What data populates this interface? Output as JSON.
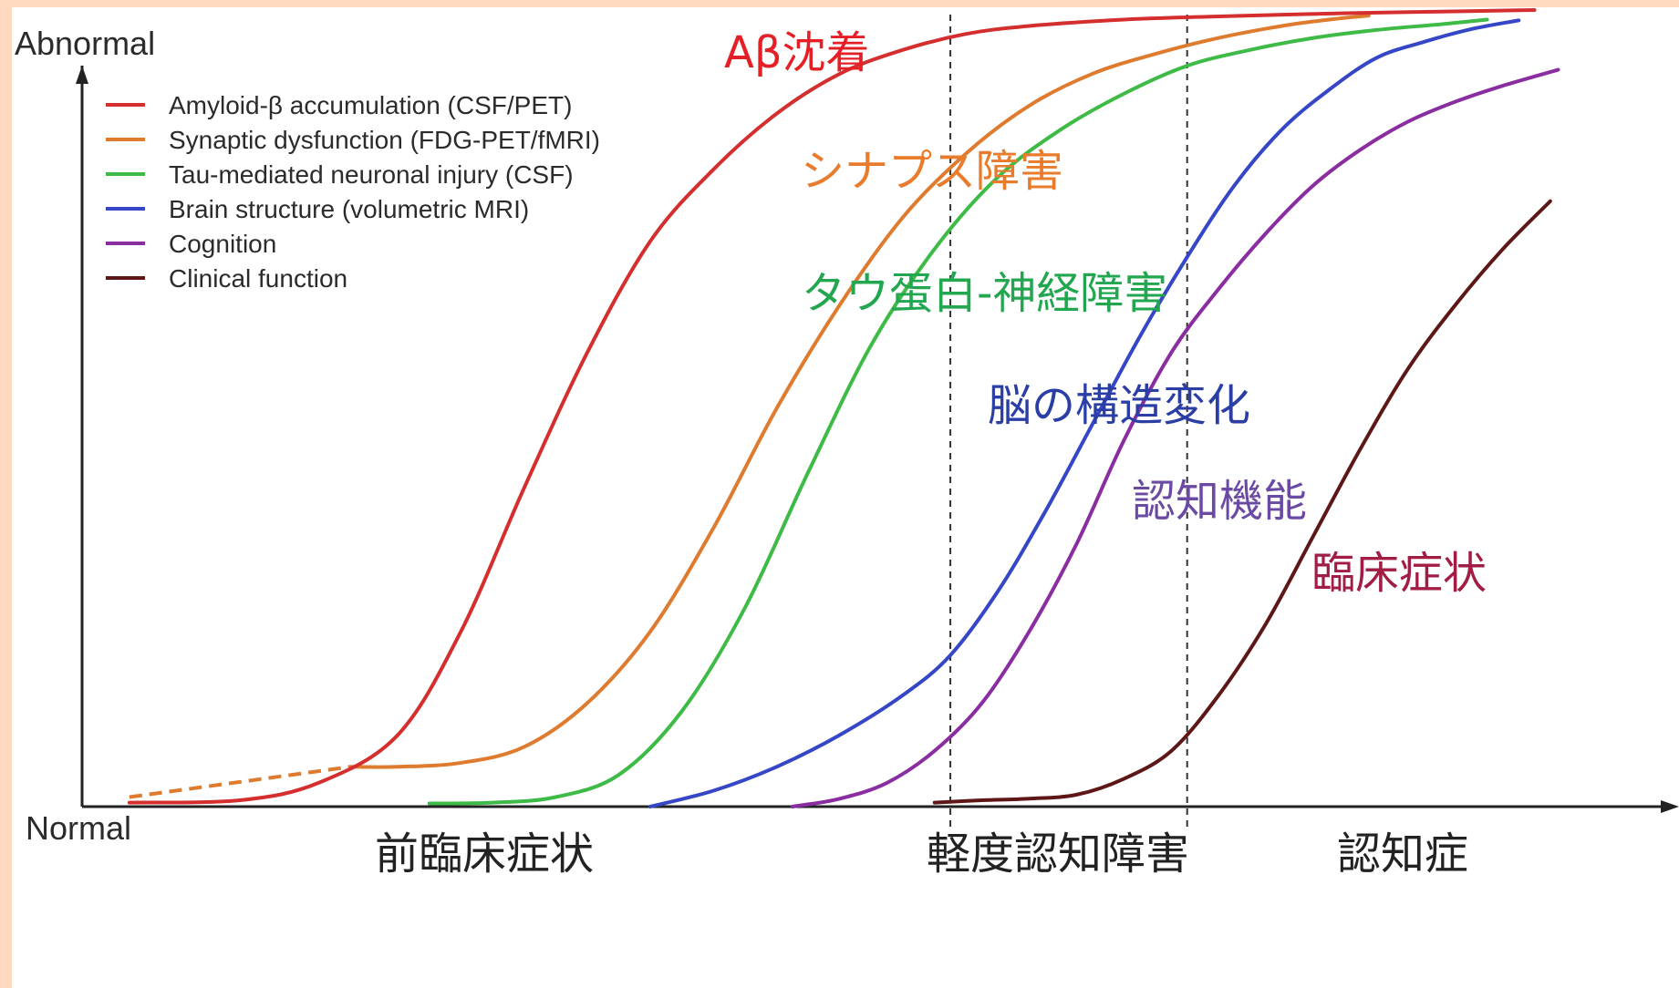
{
  "chart_data": {
    "type": "line",
    "ylabel_top": "Abnormal",
    "ylabel_bottom": "Normal",
    "xlim": [
      0,
      100
    ],
    "ylim": [
      0,
      100
    ],
    "grid": false,
    "legend_position": "top-left",
    "series": [
      {
        "name": "Amyloid-β accumulation (CSF/PET)",
        "color": "#d42e2e",
        "x": [
          3,
          10,
          15,
          20,
          24,
          28,
          32,
          36,
          40,
          44,
          48,
          52,
          56,
          60,
          66,
          72,
          80,
          86,
          92
        ],
        "y": [
          0.5,
          0.8,
          3,
          9,
          22,
          40,
          57,
          71,
          80,
          87,
          92,
          95,
          97,
          98,
          98.8,
          99.2,
          99.6,
          99.8,
          100
        ]
      },
      {
        "name": "Synaptic dysfunction (FDG-PET/fMRI)",
        "color": "#de7b2e",
        "x": [
          17,
          20,
          24,
          28,
          32,
          36,
          40,
          44,
          48,
          52,
          56,
          60,
          64,
          68,
          72,
          76,
          79,
          81.5
        ],
        "y": [
          5,
          5,
          5.5,
          7.5,
          13,
          22,
          35,
          50,
          63,
          74,
          82,
          88,
          92,
          94.5,
          96.5,
          98,
          98.8,
          99.3
        ]
      },
      {
        "name": "Tau-mediated neuronal injury (CSF)",
        "color": "#3dbb46",
        "x": [
          22,
          26,
          30,
          34,
          38,
          42,
          46,
          50,
          54,
          58,
          62,
          66,
          70,
          74,
          78,
          82,
          86,
          89
        ],
        "y": [
          0.4,
          0.5,
          1.2,
          4,
          12,
          25,
          42,
          58,
          70,
          79,
          85,
          89.5,
          93,
          95,
          96.5,
          97.5,
          98.2,
          98.8
        ]
      },
      {
        "name": "Brain structure (volumetric MRI)",
        "color": "#3546c6",
        "x": [
          36,
          40,
          44,
          48,
          52,
          55,
          58,
          61,
          64,
          67,
          70,
          73,
          76,
          79,
          82,
          85,
          88,
          91
        ],
        "y": [
          0,
          2,
          5,
          9,
          14,
          19,
          27,
          37,
          48,
          59,
          69,
          78,
          85,
          90,
          94,
          96,
          97.6,
          98.7
        ]
      },
      {
        "name": "Cognition",
        "color": "#8a2da1",
        "x": [
          45,
          48,
          51,
          54,
          57,
          60,
          63,
          66,
          69,
          72,
          75,
          78,
          81,
          84,
          87,
          90,
          93.5
        ],
        "y": [
          0,
          1,
          3,
          7,
          13,
          22,
          33,
          46,
          57,
          65,
          72,
          78,
          82.5,
          86,
          88.5,
          90.5,
          92.5
        ]
      },
      {
        "name": "Clinical function",
        "color": "#5e1717",
        "x": [
          54,
          57,
          60,
          63,
          66,
          69,
          72,
          75,
          78,
          81,
          84,
          87,
          90,
          93
        ],
        "y": [
          0.5,
          0.8,
          1,
          1.5,
          3.5,
          7,
          14,
          23,
          34,
          45,
          55,
          63,
          70,
          76
        ]
      }
    ],
    "extrapolation_dashed": {
      "series": "Synaptic dysfunction (FDG-PET/fMRI)",
      "x": [
        3,
        17
      ],
      "y": [
        1.2,
        5
      ]
    },
    "stage_dividers_x": [
      55,
      70
    ],
    "annotations": [
      {
        "text": "Aβ沈着",
        "color": "#e41f25"
      },
      {
        "text": "シナプス障害",
        "color": "#e97b2c"
      },
      {
        "text": "タウ蛋白-神経障害",
        "color": "#22a64f"
      },
      {
        "text": "脳の構造変化",
        "color": "#2a3ea5"
      },
      {
        "text": "認知機能",
        "color": "#6a4aa2"
      },
      {
        "text": "臨床症状",
        "color": "#a11d44"
      }
    ],
    "stages": [
      "前臨床症状",
      "軽度認知障害",
      "認知症"
    ]
  }
}
